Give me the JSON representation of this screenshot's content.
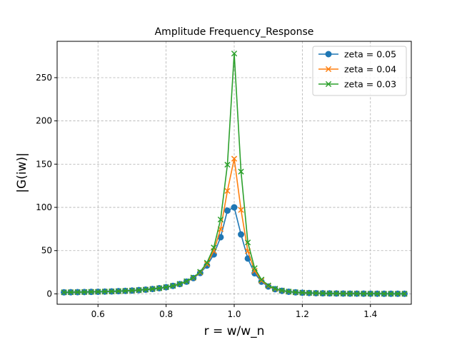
{
  "chart_data": {
    "type": "line",
    "title": "Amplitude Frequency_Response",
    "xlabel": "r = w/w_n",
    "ylabel": "|G(iw)|",
    "xlim": [
      0.48,
      1.52
    ],
    "ylim": [
      -12,
      292
    ],
    "xticks": [
      0.6,
      0.8,
      1.0,
      1.2,
      1.4
    ],
    "xtick_labels": [
      "0.6",
      "0.8",
      "1.0",
      "1.2",
      "1.4"
    ],
    "yticks": [
      0,
      50,
      100,
      150,
      200,
      250
    ],
    "ytick_labels": [
      "0",
      "50",
      "100",
      "150",
      "200",
      "250"
    ],
    "grid": true,
    "legend_position": "top-right",
    "x": [
      0.5,
      0.52,
      0.54,
      0.56,
      0.58,
      0.6,
      0.62,
      0.64,
      0.66,
      0.68,
      0.7,
      0.72,
      0.74,
      0.76,
      0.78,
      0.8,
      0.82,
      0.84,
      0.86,
      0.88,
      0.9,
      0.92,
      0.94,
      0.96,
      0.98,
      1.0,
      1.02,
      1.04,
      1.06,
      1.08,
      1.1,
      1.12,
      1.14,
      1.16,
      1.18,
      1.2,
      1.22,
      1.24,
      1.26,
      1.28,
      1.3,
      1.32,
      1.34,
      1.36,
      1.38,
      1.4,
      1.42,
      1.44,
      1.46,
      1.48,
      1.5
    ],
    "series": [
      {
        "name": "zeta = 0.05",
        "color": "#1f77b4",
        "marker": "circle",
        "values": [
          1.33,
          1.37,
          1.41,
          1.46,
          1.51,
          1.56,
          1.62,
          1.69,
          1.77,
          1.86,
          1.96,
          2.08,
          2.21,
          2.37,
          2.56,
          2.77,
          3.04,
          3.36,
          3.76,
          4.27,
          4.91,
          5.72,
          6.75,
          8.09,
          9.81,
          10.0,
          8.29,
          6.39,
          4.88,
          3.75,
          2.92,
          2.32,
          1.89,
          1.57,
          1.33,
          1.15,
          1.01,
          0.9,
          0.8,
          0.72,
          0.66,
          0.6,
          0.55,
          0.51,
          0.47,
          0.44,
          0.41,
          0.38,
          0.36,
          0.34,
          0.32
        ]
      },
      {
        "name": "zeta = 0.04",
        "color": "#ff7f0e",
        "marker": "x",
        "values": [
          1.33,
          1.37,
          1.41,
          1.46,
          1.51,
          1.56,
          1.62,
          1.69,
          1.77,
          1.86,
          1.96,
          2.08,
          2.22,
          2.37,
          2.56,
          2.77,
          3.05,
          3.38,
          3.79,
          4.31,
          4.99,
          5.87,
          7.04,
          8.65,
          10.91,
          12.5,
          9.85,
          7.03,
          5.16,
          3.91,
          3.03,
          2.38,
          1.93,
          1.6,
          1.35,
          1.16,
          1.02,
          0.9,
          0.81,
          0.73,
          0.66,
          0.6,
          0.55,
          0.51,
          0.47,
          0.44,
          0.41,
          0.38,
          0.36,
          0.34,
          0.32
        ]
      },
      {
        "name": "zeta = 0.03",
        "color": "#2ca02c",
        "marker": "x",
        "values": [
          1.33,
          1.37,
          1.41,
          1.46,
          1.51,
          1.56,
          1.62,
          1.69,
          1.77,
          1.86,
          1.96,
          2.08,
          2.22,
          2.38,
          2.56,
          2.78,
          3.05,
          3.39,
          3.81,
          4.35,
          5.05,
          6.0,
          7.32,
          9.27,
          12.22,
          16.67,
          11.89,
          7.71,
          5.45,
          4.06,
          3.12,
          2.45,
          1.97,
          1.62,
          1.37,
          1.18,
          1.03,
          0.91,
          0.81,
          0.73,
          0.66,
          0.6,
          0.55,
          0.51,
          0.47,
          0.44,
          0.41,
          0.38,
          0.36,
          0.34,
          0.32
        ]
      }
    ],
    "value_transform": "square"
  }
}
